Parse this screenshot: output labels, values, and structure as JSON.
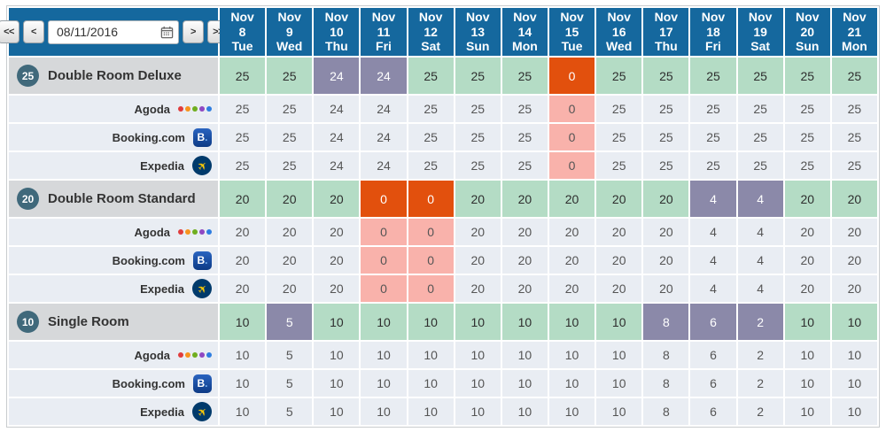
{
  "toolbar": {
    "first_label": "<<",
    "prev_label": "<",
    "date_value": "08/11/2016",
    "next_label": ">",
    "last_label": ">>"
  },
  "columns": [
    {
      "month": "Nov",
      "day": "8",
      "weekday": "Tue"
    },
    {
      "month": "Nov",
      "day": "9",
      "weekday": "Wed"
    },
    {
      "month": "Nov",
      "day": "10",
      "weekday": "Thu"
    },
    {
      "month": "Nov",
      "day": "11",
      "weekday": "Fri"
    },
    {
      "month": "Nov",
      "day": "12",
      "weekday": "Sat"
    },
    {
      "month": "Nov",
      "day": "13",
      "weekday": "Sun"
    },
    {
      "month": "Nov",
      "day": "14",
      "weekday": "Mon"
    },
    {
      "month": "Nov",
      "day": "15",
      "weekday": "Tue"
    },
    {
      "month": "Nov",
      "day": "16",
      "weekday": "Wed"
    },
    {
      "month": "Nov",
      "day": "17",
      "weekday": "Thu"
    },
    {
      "month": "Nov",
      "day": "18",
      "weekday": "Fri"
    },
    {
      "month": "Nov",
      "day": "19",
      "weekday": "Sat"
    },
    {
      "month": "Nov",
      "day": "20",
      "weekday": "Sun"
    },
    {
      "month": "Nov",
      "day": "21",
      "weekday": "Mon"
    }
  ],
  "rooms": [
    {
      "name": "Double Room Deluxe",
      "badge": "25",
      "values": [
        "25",
        "25",
        "24",
        "24",
        "25",
        "25",
        "25",
        "0",
        "25",
        "25",
        "25",
        "25",
        "25",
        "25"
      ],
      "states": [
        "available",
        "available",
        "reduced",
        "reduced",
        "available",
        "available",
        "available",
        "soldout",
        "available",
        "available",
        "available",
        "available",
        "available",
        "available"
      ],
      "channels": [
        {
          "name": "Agoda",
          "icon": "agoda-dots-icon",
          "values": [
            "25",
            "25",
            "24",
            "24",
            "25",
            "25",
            "25",
            "0",
            "25",
            "25",
            "25",
            "25",
            "25",
            "25"
          ],
          "states": [
            "normal",
            "normal",
            "normal",
            "normal",
            "normal",
            "normal",
            "normal",
            "soldout",
            "normal",
            "normal",
            "normal",
            "normal",
            "normal",
            "normal"
          ]
        },
        {
          "name": "Booking.com",
          "icon": "booking-icon",
          "values": [
            "25",
            "25",
            "24",
            "24",
            "25",
            "25",
            "25",
            "0",
            "25",
            "25",
            "25",
            "25",
            "25",
            "25"
          ],
          "states": [
            "normal",
            "normal",
            "normal",
            "normal",
            "normal",
            "normal",
            "normal",
            "soldout",
            "normal",
            "normal",
            "normal",
            "normal",
            "normal",
            "normal"
          ]
        },
        {
          "name": "Expedia",
          "icon": "expedia-plane-icon",
          "values": [
            "25",
            "25",
            "24",
            "24",
            "25",
            "25",
            "25",
            "0",
            "25",
            "25",
            "25",
            "25",
            "25",
            "25"
          ],
          "states": [
            "normal",
            "normal",
            "normal",
            "normal",
            "normal",
            "normal",
            "normal",
            "soldout",
            "normal",
            "normal",
            "normal",
            "normal",
            "normal",
            "normal"
          ]
        }
      ]
    },
    {
      "name": "Double Room Standard",
      "badge": "20",
      "values": [
        "20",
        "20",
        "20",
        "0",
        "0",
        "20",
        "20",
        "20",
        "20",
        "20",
        "4",
        "4",
        "20",
        "20"
      ],
      "states": [
        "available",
        "available",
        "available",
        "soldout",
        "soldout",
        "available",
        "available",
        "available",
        "available",
        "available",
        "reduced",
        "reduced",
        "available",
        "available"
      ],
      "channels": [
        {
          "name": "Agoda",
          "icon": "agoda-dots-icon",
          "values": [
            "20",
            "20",
            "20",
            "0",
            "0",
            "20",
            "20",
            "20",
            "20",
            "20",
            "4",
            "4",
            "20",
            "20"
          ],
          "states": [
            "normal",
            "normal",
            "normal",
            "soldout",
            "soldout",
            "normal",
            "normal",
            "normal",
            "normal",
            "normal",
            "normal",
            "normal",
            "normal",
            "normal"
          ]
        },
        {
          "name": "Booking.com",
          "icon": "booking-icon",
          "values": [
            "20",
            "20",
            "20",
            "0",
            "0",
            "20",
            "20",
            "20",
            "20",
            "20",
            "4",
            "4",
            "20",
            "20"
          ],
          "states": [
            "normal",
            "normal",
            "normal",
            "soldout",
            "soldout",
            "normal",
            "normal",
            "normal",
            "normal",
            "normal",
            "normal",
            "normal",
            "normal",
            "normal"
          ]
        },
        {
          "name": "Expedia",
          "icon": "expedia-plane-icon",
          "values": [
            "20",
            "20",
            "20",
            "0",
            "0",
            "20",
            "20",
            "20",
            "20",
            "20",
            "4",
            "4",
            "20",
            "20"
          ],
          "states": [
            "normal",
            "normal",
            "normal",
            "soldout",
            "soldout",
            "normal",
            "normal",
            "normal",
            "normal",
            "normal",
            "normal",
            "normal",
            "normal",
            "normal"
          ]
        }
      ]
    },
    {
      "name": "Single Room",
      "badge": "10",
      "values": [
        "10",
        "5",
        "10",
        "10",
        "10",
        "10",
        "10",
        "10",
        "10",
        "8",
        "6",
        "2",
        "10",
        "10"
      ],
      "states": [
        "available",
        "reduced",
        "available",
        "available",
        "available",
        "available",
        "available",
        "available",
        "available",
        "reduced",
        "reduced",
        "reduced",
        "available",
        "available"
      ],
      "channels": [
        {
          "name": "Agoda",
          "icon": "agoda-dots-icon",
          "values": [
            "10",
            "5",
            "10",
            "10",
            "10",
            "10",
            "10",
            "10",
            "10",
            "8",
            "6",
            "2",
            "10",
            "10"
          ],
          "states": [
            "normal",
            "normal",
            "normal",
            "normal",
            "normal",
            "normal",
            "normal",
            "normal",
            "normal",
            "normal",
            "normal",
            "normal",
            "normal",
            "normal"
          ]
        },
        {
          "name": "Booking.com",
          "icon": "booking-icon",
          "values": [
            "10",
            "5",
            "10",
            "10",
            "10",
            "10",
            "10",
            "10",
            "10",
            "8",
            "6",
            "2",
            "10",
            "10"
          ],
          "states": [
            "normal",
            "normal",
            "normal",
            "normal",
            "normal",
            "normal",
            "normal",
            "normal",
            "normal",
            "normal",
            "normal",
            "normal",
            "normal",
            "normal"
          ]
        },
        {
          "name": "Expedia",
          "icon": "expedia-plane-icon",
          "values": [
            "10",
            "5",
            "10",
            "10",
            "10",
            "10",
            "10",
            "10",
            "10",
            "8",
            "6",
            "2",
            "10",
            "10"
          ],
          "states": [
            "normal",
            "normal",
            "normal",
            "normal",
            "normal",
            "normal",
            "normal",
            "normal",
            "normal",
            "normal",
            "normal",
            "normal",
            "normal",
            "normal"
          ]
        }
      ]
    }
  ],
  "icons": {
    "agoda_dot_colors": [
      "#e03c3c",
      "#f7941e",
      "#6fae1f",
      "#8f48c2",
      "#2e7de0"
    ],
    "booking_letter": "B",
    "booking_dot": ".",
    "expedia_plane_glyph": "✈"
  },
  "colors": {
    "header_blue": "#15689e",
    "available_green": "#b4dcc5",
    "reduced_purple": "#8b89a9",
    "soldout_orange": "#e2500d",
    "soldout_pink": "#f9b2ab",
    "channel_bg": "#e9edf3",
    "room_label_bg": "#d6d8da",
    "badge_teal": "#40697b"
  }
}
